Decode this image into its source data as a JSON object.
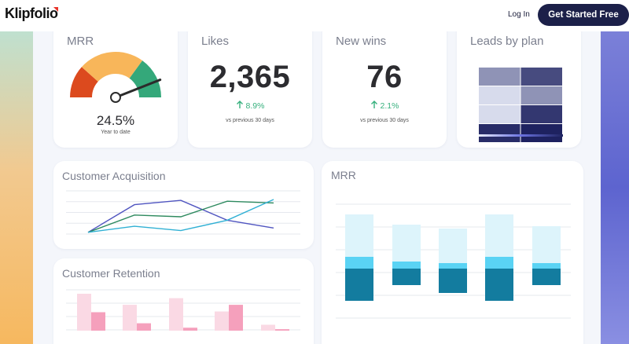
{
  "header": {
    "brand": "Klipfolio",
    "login_label": "Log In",
    "cta_label": "Get Started Free"
  },
  "kpis": {
    "mrr": {
      "title": "MRR",
      "value": "24.5%",
      "caption": "Year to date",
      "gauge_fraction": 0.88
    },
    "likes": {
      "title": "Likes",
      "value": "2,365",
      "delta": "8.9%",
      "period": "vs previous 30 days",
      "arrow_icon": "arrow-up-icon"
    },
    "new_wins": {
      "title": "New wins",
      "value": "76",
      "delta": "2.1%",
      "period": "vs previous 30 days",
      "arrow_icon": "arrow-up-icon"
    },
    "leads": {
      "title": "Leads by plan"
    }
  },
  "acquisition": {
    "title": "Customer Acquisition"
  },
  "retention": {
    "title": "Customer Retention"
  },
  "mrr_bars": {
    "title": "MRR"
  },
  "colors": {
    "positive": "#36b07d",
    "navy": "#1c2049",
    "gauge_red": "#dc4a1e",
    "gauge_yellow": "#f8b65a",
    "gauge_green": "#34a87a",
    "line_purple": "#5055c0",
    "line_green": "#2e8a5f",
    "line_cyan": "#30b0d4",
    "bar_light": "#ddf4fb",
    "bar_mid": "#5ad3f4",
    "bar_dark": "#137c9f",
    "ret_light": "#fad9e4",
    "ret_dark": "#f5a0bc"
  },
  "chart_data": [
    {
      "type": "line",
      "title": "Customer Acquisition",
      "x": [
        0,
        1,
        2,
        3,
        4
      ],
      "ylim": [
        0,
        5
      ],
      "series": [
        {
          "values": [
            0.2,
            3.4,
            3.9,
            1.6,
            0.7
          ]
        },
        {
          "values": [
            0.2,
            2.2,
            2.0,
            3.8,
            3.6
          ]
        },
        {
          "values": [
            0.2,
            0.9,
            0.4,
            1.6,
            4.0
          ]
        }
      ]
    },
    {
      "type": "bar",
      "title": "MRR",
      "categories": [
        "1",
        "2",
        "3",
        "4",
        "5"
      ],
      "ylim": [
        0,
        10
      ],
      "series": [
        {
          "values": [
            5.4,
            4.7,
            4.4,
            5.4,
            4.7
          ]
        },
        {
          "values": [
            1.5,
            0.9,
            0.7,
            1.5,
            0.7
          ]
        },
        {
          "values": [
            4.1,
            2.1,
            3.1,
            4.1,
            2.1
          ]
        }
      ]
    },
    {
      "type": "bar",
      "title": "Customer Retention",
      "categories": [
        "1",
        "2",
        "3",
        "4",
        "5"
      ],
      "ylim": [
        0,
        6
      ],
      "series": [
        {
          "values": [
            5.0,
            3.5,
            4.4,
            2.6,
            0.8
          ]
        },
        {
          "values": [
            2.5,
            1.0,
            0.4,
            3.5,
            0.2
          ]
        }
      ]
    },
    {
      "type": "heatmap",
      "title": "Leads by plan",
      "rows": 4,
      "cols": 2,
      "values": [
        [
          0.45,
          0.8
        ],
        [
          0.1,
          0.45
        ],
        [
          0.1,
          0.9
        ],
        [
          0.95,
          1.0
        ]
      ]
    }
  ]
}
